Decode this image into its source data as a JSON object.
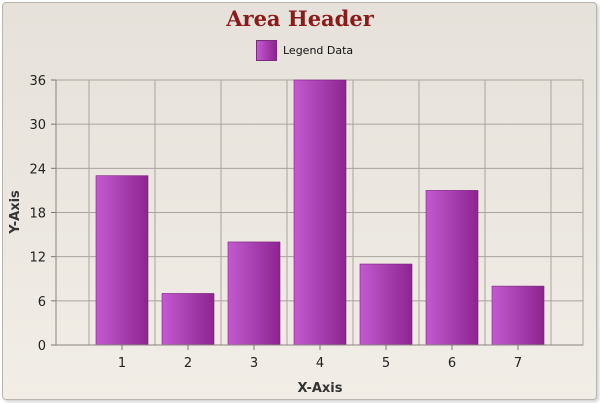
{
  "chart_data": {
    "type": "bar",
    "title": "Area Header",
    "xlabel": "X-Axis",
    "ylabel": "Y-Axis",
    "categories": [
      "1",
      "2",
      "3",
      "4",
      "5",
      "6",
      "7"
    ],
    "series": [
      {
        "name": "Legend Data",
        "values": [
          23,
          7,
          14,
          36,
          11,
          21,
          8
        ]
      }
    ],
    "ylim": [
      0,
      36
    ],
    "yticks": [
      0,
      6,
      12,
      18,
      24,
      30,
      36
    ],
    "grid": true,
    "legend_position": "top-center"
  },
  "colors": {
    "bar_light": "#c35ad0",
    "bar_dark": "#8d2490",
    "title": "#8b1a1a",
    "grid": "#a9a49d"
  }
}
